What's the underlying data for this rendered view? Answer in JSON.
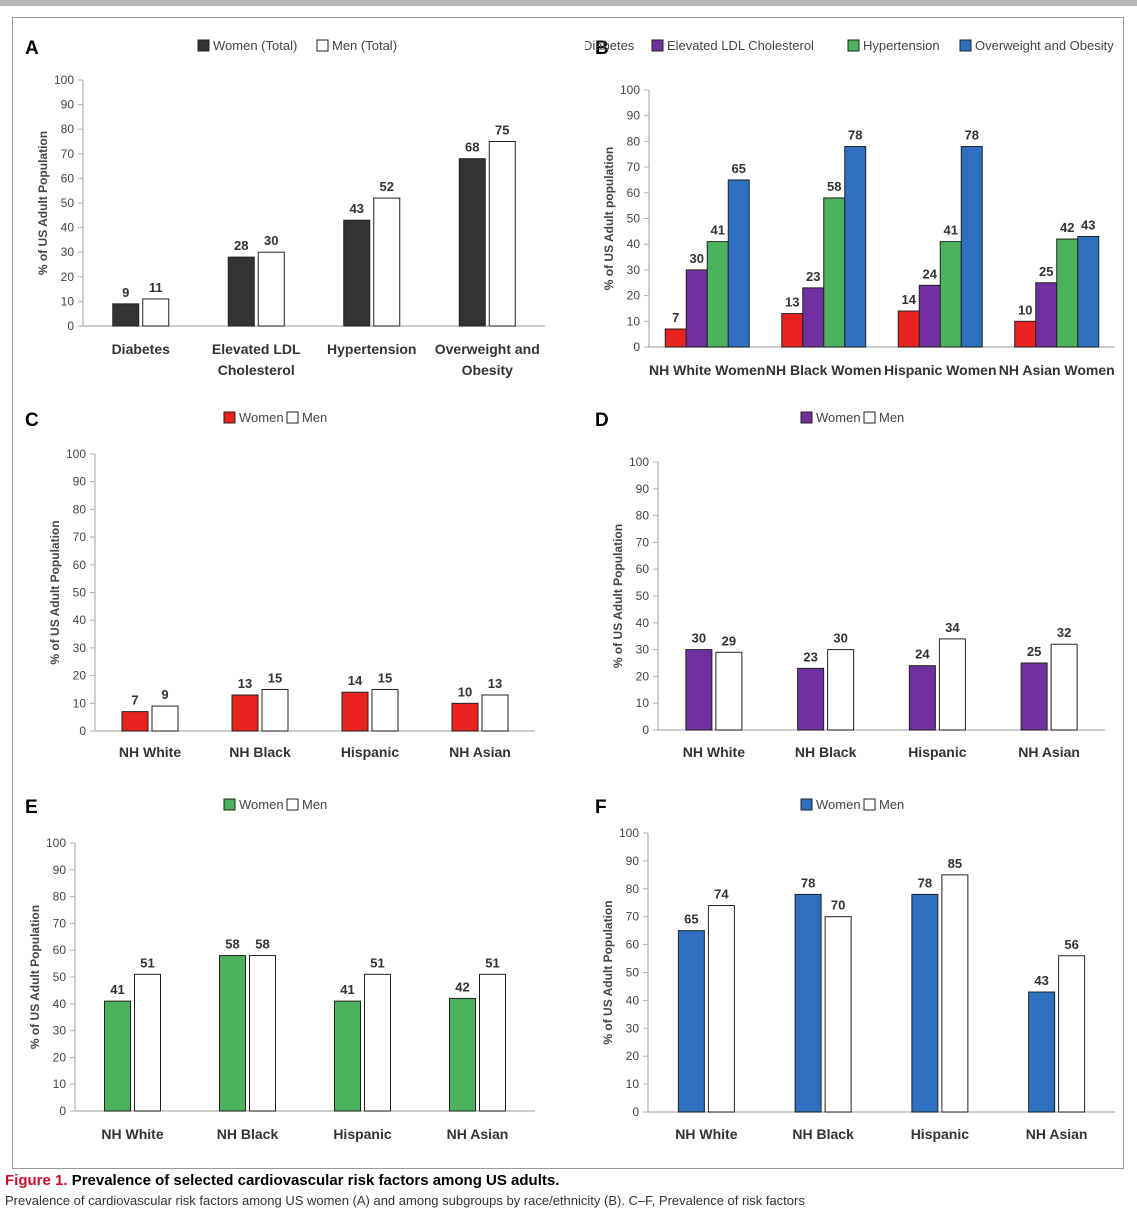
{
  "figure": {
    "caption_label": "Figure 1.",
    "caption_text": "Prevalence of selected cardiovascular risk factors among US adults.",
    "caption_cutoff": "Prevalence of cardiovascular risk factors among US women (A) and among subgroups by race/ethnicity (B). C–F, Prevalence of risk factors"
  },
  "colors": {
    "black": "#333333",
    "white": "#ffffff",
    "red": "#e8231f",
    "purple": "#7030a0",
    "green": "#4cb25b",
    "blue": "#2e6fc0",
    "axis": "#b0b0b0",
    "outline": "#222222"
  },
  "chart_data": [
    {
      "id": "A",
      "panel_label": "A",
      "type": "bar",
      "title": "",
      "ylabel": "% of US Adult Population",
      "ylim": [
        0,
        100
      ],
      "yticks": [
        0,
        10,
        20,
        30,
        40,
        50,
        60,
        70,
        80,
        90,
        100
      ],
      "categories": [
        [
          "Diabetes"
        ],
        [
          "Elevated LDL",
          "Cholesterol"
        ],
        [
          "Hypertension"
        ],
        [
          "Overweight and",
          "Obesity"
        ]
      ],
      "series": [
        {
          "name": "Women (Total)",
          "color": "#333333",
          "values": [
            9,
            28,
            43,
            68
          ]
        },
        {
          "name": "Men (Total)",
          "color": "#ffffff",
          "values": [
            11,
            30,
            52,
            75
          ]
        }
      ],
      "legend_position": "top"
    },
    {
      "id": "B",
      "panel_label": "B",
      "type": "bar",
      "title": "",
      "ylabel": "% of US Adult population",
      "ylim": [
        0,
        100
      ],
      "yticks": [
        0,
        10,
        20,
        30,
        40,
        50,
        60,
        70,
        80,
        90,
        100
      ],
      "categories": [
        [
          "NH White Women"
        ],
        [
          "NH Black Women"
        ],
        [
          "Hispanic Women"
        ],
        [
          "NH Asian Women"
        ]
      ],
      "series": [
        {
          "name": "Diabetes",
          "color": "#e8231f",
          "values": [
            7,
            13,
            14,
            10
          ]
        },
        {
          "name": "Elevated LDL Cholesterol",
          "color": "#7030a0",
          "values": [
            30,
            23,
            24,
            25
          ]
        },
        {
          "name": "Hypertension",
          "color": "#4cb25b",
          "values": [
            41,
            58,
            41,
            42
          ]
        },
        {
          "name": "Overweight and Obesity",
          "color": "#2e6fc0",
          "values": [
            65,
            78,
            78,
            43
          ]
        }
      ],
      "legend_position": "top"
    },
    {
      "id": "C",
      "panel_label": "C",
      "type": "bar",
      "title": "",
      "ylabel": "% of US Adult Population",
      "ylim": [
        0,
        100
      ],
      "yticks": [
        0,
        10,
        20,
        30,
        40,
        50,
        60,
        70,
        80,
        90,
        100
      ],
      "categories": [
        [
          "NH White"
        ],
        [
          "NH Black"
        ],
        [
          "Hispanic"
        ],
        [
          "NH Asian"
        ]
      ],
      "series": [
        {
          "name": "Women",
          "color": "#e8231f",
          "values": [
            7,
            13,
            14,
            10
          ]
        },
        {
          "name": "Men",
          "color": "#ffffff",
          "values": [
            9,
            15,
            15,
            13
          ]
        }
      ],
      "legend_position": "top"
    },
    {
      "id": "D",
      "panel_label": "D",
      "type": "bar",
      "title": "",
      "ylabel": "% of US Adult Population",
      "ylim": [
        0,
        100
      ],
      "yticks": [
        0,
        10,
        20,
        30,
        40,
        50,
        60,
        70,
        80,
        90,
        100
      ],
      "categories": [
        [
          "NH White"
        ],
        [
          "NH Black"
        ],
        [
          "Hispanic"
        ],
        [
          "NH Asian"
        ]
      ],
      "series": [
        {
          "name": "Women",
          "color": "#7030a0",
          "values": [
            30,
            23,
            24,
            25
          ]
        },
        {
          "name": "Men",
          "color": "#ffffff",
          "values": [
            29,
            30,
            34,
            32
          ]
        }
      ],
      "legend_position": "top"
    },
    {
      "id": "E",
      "panel_label": "E",
      "type": "bar",
      "title": "",
      "ylabel": "% of US Adult Population",
      "ylim": [
        0,
        100
      ],
      "yticks": [
        0,
        10,
        20,
        30,
        40,
        50,
        60,
        70,
        80,
        90,
        100
      ],
      "categories": [
        [
          "NH White"
        ],
        [
          "NH Black"
        ],
        [
          "Hispanic"
        ],
        [
          "NH Asian"
        ]
      ],
      "series": [
        {
          "name": "Women",
          "color": "#4cb25b",
          "values": [
            41,
            58,
            41,
            42
          ]
        },
        {
          "name": "Men",
          "color": "#ffffff",
          "values": [
            51,
            58,
            51,
            51
          ]
        }
      ],
      "legend_position": "top"
    },
    {
      "id": "F",
      "panel_label": "F",
      "type": "bar",
      "title": "",
      "ylabel": "% of US Adult Population",
      "ylim": [
        0,
        100
      ],
      "yticks": [
        0,
        10,
        20,
        30,
        40,
        50,
        60,
        70,
        80,
        90,
        100
      ],
      "categories": [
        [
          "NH White"
        ],
        [
          "NH Black"
        ],
        [
          "Hispanic"
        ],
        [
          "NH Asian"
        ]
      ],
      "series": [
        {
          "name": "Women",
          "color": "#2e6fc0",
          "values": [
            65,
            78,
            78,
            43
          ]
        },
        {
          "name": "Men",
          "color": "#ffffff",
          "values": [
            74,
            70,
            85,
            56
          ]
        }
      ],
      "legend_position": "top"
    }
  ]
}
